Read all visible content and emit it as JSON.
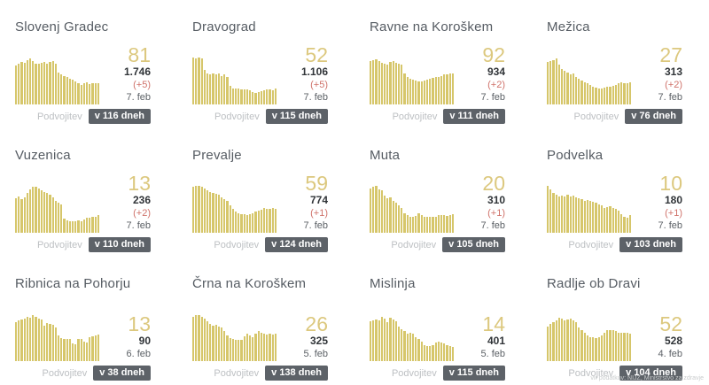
{
  "labels": {
    "podvojitev": "Podvojitev"
  },
  "footer": {
    "source_note": "vir podatkov: NIJZ, Ministrstvo za zdravje"
  },
  "colors": {
    "bar": "#d6c66a",
    "accent": "#dcc87e",
    "delta": "#d0736b",
    "title": "#565c63",
    "total": "#303438",
    "date": "#5c6166",
    "muted": "#bdc0c3",
    "badge_bg": "#5d6268",
    "badge_text": "#ffffff",
    "note": "#c9cccd"
  },
  "chart_data": [
    {
      "type": "bar",
      "title": "Slovenj Gradec",
      "unit": "relative bar height %, last 30 days, no axes shown",
      "values": [
        78,
        82,
        86,
        84,
        90,
        93,
        88,
        83,
        82,
        84,
        85,
        83,
        85,
        87,
        82,
        65,
        60,
        57,
        55,
        52,
        50,
        47,
        43,
        40,
        42,
        44,
        41,
        43,
        42,
        42
      ],
      "latest": "81",
      "total": "1.746",
      "new": "(+5)",
      "as_of": "7. feb",
      "doubling_in": "v 116 dneh"
    },
    {
      "type": "bar",
      "title": "Dravograd",
      "unit": "relative bar height %, last 30 days, no axes shown",
      "values": [
        95,
        93,
        94,
        92,
        70,
        62,
        60,
        63,
        60,
        62,
        58,
        60,
        55,
        38,
        33,
        32,
        32,
        31,
        30,
        30,
        28,
        25,
        24,
        25,
        26,
        29,
        31,
        30,
        28,
        32
      ],
      "latest": "52",
      "total": "1.106",
      "new": "(+5)",
      "as_of": "7. feb",
      "doubling_in": "v 115 dneh"
    },
    {
      "type": "bar",
      "title": "Ravne na Koroškem",
      "unit": "relative bar height %, last 30 days, no axes shown",
      "values": [
        88,
        90,
        91,
        87,
        84,
        82,
        80,
        86,
        88,
        84,
        82,
        80,
        62,
        55,
        52,
        50,
        48,
        47,
        46,
        48,
        50,
        52,
        53,
        55,
        56,
        58,
        60,
        61,
        62,
        63
      ],
      "latest": "92",
      "total": "934",
      "new": "(+2)",
      "as_of": "7. feb",
      "doubling_in": "v 111 dneh"
    },
    {
      "type": "bar",
      "title": "Mežica",
      "unit": "relative bar height %, last 30 days, no axes shown",
      "values": [
        85,
        88,
        90,
        92,
        80,
        72,
        68,
        65,
        60,
        62,
        55,
        52,
        48,
        45,
        42,
        40,
        36,
        34,
        33,
        33,
        34,
        35,
        36,
        38,
        40,
        42,
        44,
        42,
        43,
        44
      ],
      "latest": "27",
      "total": "313",
      "new": "(+2)",
      "as_of": "7. feb",
      "doubling_in": "v 76 dneh"
    },
    {
      "type": "bar",
      "title": "Vuzenica",
      "unit": "relative bar height %, last 30 days, no axes shown",
      "values": [
        70,
        74,
        68,
        72,
        80,
        88,
        92,
        93,
        90,
        85,
        83,
        80,
        76,
        72,
        65,
        60,
        58,
        28,
        25,
        24,
        23,
        24,
        25,
        24,
        26,
        30,
        31,
        32,
        33,
        36
      ],
      "latest": "13",
      "total": "236",
      "new": "(+2)",
      "as_of": "7. feb",
      "doubling_in": "v 110 dneh"
    },
    {
      "type": "bar",
      "title": "Prevalje",
      "unit": "relative bar height %, last 30 days, no axes shown",
      "values": [
        93,
        95,
        94,
        93,
        90,
        85,
        82,
        80,
        78,
        76,
        72,
        68,
        65,
        55,
        48,
        42,
        40,
        38,
        37,
        36,
        38,
        40,
        42,
        44,
        46,
        50,
        48,
        49,
        50,
        48
      ],
      "latest": "59",
      "total": "774",
      "new": "(+1)",
      "as_of": "7. feb",
      "doubling_in": "v 124 dneh"
    },
    {
      "type": "bar",
      "title": "Muta",
      "unit": "relative bar height %, last 30 days, no axes shown",
      "values": [
        90,
        92,
        95,
        88,
        85,
        75,
        70,
        72,
        65,
        60,
        55,
        50,
        40,
        35,
        33,
        32,
        34,
        40,
        36,
        33,
        32,
        33,
        32,
        33,
        35,
        36,
        35,
        34,
        36,
        38
      ],
      "latest": "20",
      "total": "310",
      "new": "(+1)",
      "as_of": "7. feb",
      "doubling_in": "v 105 dneh"
    },
    {
      "type": "bar",
      "title": "Podvelka",
      "unit": "relative bar height %, last 30 days, no axes shown",
      "values": [
        95,
        88,
        80,
        76,
        74,
        75,
        74,
        76,
        74,
        75,
        72,
        70,
        68,
        65,
        66,
        64,
        62,
        60,
        58,
        55,
        50,
        52,
        54,
        50,
        48,
        45,
        38,
        32,
        30,
        35
      ],
      "latest": "10",
      "total": "180",
      "new": "(+1)",
      "as_of": "7. feb",
      "doubling_in": "v 103 dneh"
    },
    {
      "type": "bar",
      "title": "Ribnica na Pohorju",
      "unit": "relative bar height %, last 30 days, no axes shown",
      "values": [
        78,
        82,
        84,
        86,
        90,
        88,
        92,
        90,
        86,
        84,
        72,
        76,
        75,
        74,
        68,
        52,
        46,
        45,
        44,
        45,
        36,
        34,
        44,
        45,
        40,
        38,
        48,
        50,
        52,
        53
      ],
      "latest": "13",
      "total": "90",
      "as_of": "6. feb",
      "doubling_in": "v 38 dneh"
    },
    {
      "type": "bar",
      "title": "Črna na Koroškem",
      "unit": "relative bar height %, last 30 days, no axes shown",
      "values": [
        90,
        92,
        93,
        90,
        85,
        80,
        75,
        72,
        73,
        70,
        68,
        60,
        52,
        46,
        44,
        42,
        42,
        43,
        50,
        55,
        52,
        48,
        55,
        60,
        58,
        55,
        54,
        55,
        54,
        55
      ],
      "latest": "26",
      "total": "325",
      "as_of": "5. feb",
      "doubling_in": "v 138 dneh"
    },
    {
      "type": "bar",
      "title": "Mislinja",
      "unit": "relative bar height %, last 30 days, no axes shown",
      "values": [
        80,
        82,
        84,
        83,
        90,
        86,
        78,
        88,
        84,
        80,
        70,
        65,
        60,
        55,
        58,
        56,
        48,
        44,
        40,
        32,
        30,
        30,
        32,
        38,
        40,
        38,
        36,
        33,
        30,
        28
      ],
      "latest": "14",
      "total": "401",
      "as_of": "5. feb",
      "doubling_in": "v 115 dneh"
    },
    {
      "type": "bar",
      "title": "Radlje ob Dravi",
      "unit": "relative bar height %, last 30 days, no axes shown",
      "values": [
        70,
        75,
        78,
        82,
        88,
        85,
        82,
        84,
        85,
        82,
        78,
        68,
        62,
        58,
        52,
        48,
        48,
        47,
        48,
        52,
        58,
        62,
        63,
        62,
        60,
        58,
        57,
        58,
        57,
        56
      ],
      "latest": "52",
      "total": "528",
      "as_of": "4. feb",
      "doubling_in": "v 104 dneh"
    }
  ]
}
